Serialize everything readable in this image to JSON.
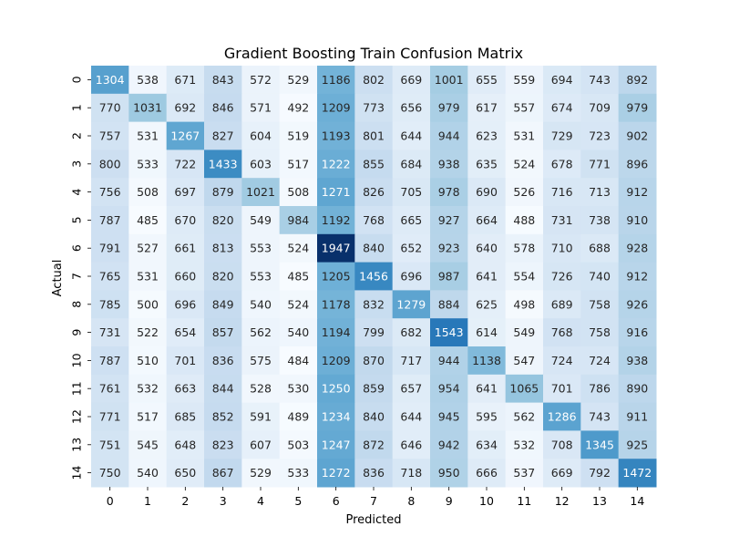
{
  "chart_data": {
    "type": "heatmap",
    "title": "Gradient Boosting Train Confusion Matrix",
    "xlabel": "Predicted",
    "ylabel": "Actual",
    "x_categories": [
      "0",
      "1",
      "2",
      "3",
      "4",
      "5",
      "6",
      "7",
      "8",
      "9",
      "10",
      "11",
      "12",
      "13",
      "14"
    ],
    "y_categories": [
      "0",
      "1",
      "2",
      "3",
      "4",
      "5",
      "6",
      "7",
      "8",
      "9",
      "10",
      "11",
      "12",
      "13",
      "14"
    ],
    "values": [
      [
        1304,
        538,
        671,
        843,
        572,
        529,
        1186,
        802,
        669,
        1001,
        655,
        559,
        694,
        743,
        892
      ],
      [
        770,
        1031,
        692,
        846,
        571,
        492,
        1209,
        773,
        656,
        979,
        617,
        557,
        674,
        709,
        979
      ],
      [
        757,
        531,
        1267,
        827,
        604,
        519,
        1193,
        801,
        644,
        944,
        623,
        531,
        729,
        723,
        902
      ],
      [
        800,
        533,
        722,
        1433,
        603,
        517,
        1222,
        855,
        684,
        938,
        635,
        524,
        678,
        771,
        896
      ],
      [
        756,
        508,
        697,
        879,
        1021,
        508,
        1271,
        826,
        705,
        978,
        690,
        526,
        716,
        713,
        912
      ],
      [
        787,
        485,
        670,
        820,
        549,
        984,
        1192,
        768,
        665,
        927,
        664,
        488,
        731,
        738,
        910
      ],
      [
        791,
        527,
        661,
        813,
        553,
        524,
        1947,
        840,
        652,
        923,
        640,
        578,
        710,
        688,
        928
      ],
      [
        765,
        531,
        660,
        820,
        553,
        485,
        1205,
        1456,
        696,
        987,
        641,
        554,
        726,
        740,
        912
      ],
      [
        785,
        500,
        696,
        849,
        540,
        524,
        1178,
        832,
        1279,
        884,
        625,
        498,
        689,
        758,
        926
      ],
      [
        731,
        522,
        654,
        857,
        562,
        540,
        1194,
        799,
        682,
        1543,
        614,
        549,
        768,
        758,
        916
      ],
      [
        787,
        510,
        701,
        836,
        575,
        484,
        1209,
        870,
        717,
        944,
        1138,
        547,
        724,
        724,
        938
      ],
      [
        761,
        532,
        663,
        844,
        528,
        530,
        1250,
        859,
        657,
        954,
        641,
        1065,
        701,
        786,
        890
      ],
      [
        771,
        517,
        685,
        852,
        591,
        489,
        1234,
        840,
        644,
        945,
        595,
        562,
        1286,
        743,
        911
      ],
      [
        751,
        545,
        648,
        823,
        607,
        503,
        1247,
        872,
        646,
        942,
        634,
        532,
        708,
        1345,
        925
      ],
      [
        750,
        540,
        650,
        867,
        529,
        533,
        1272,
        836,
        718,
        950,
        666,
        537,
        669,
        792,
        1472
      ]
    ],
    "colormap": "Blues",
    "value_range": [
      484,
      1947
    ],
    "colorbar": false,
    "annotations": true
  }
}
